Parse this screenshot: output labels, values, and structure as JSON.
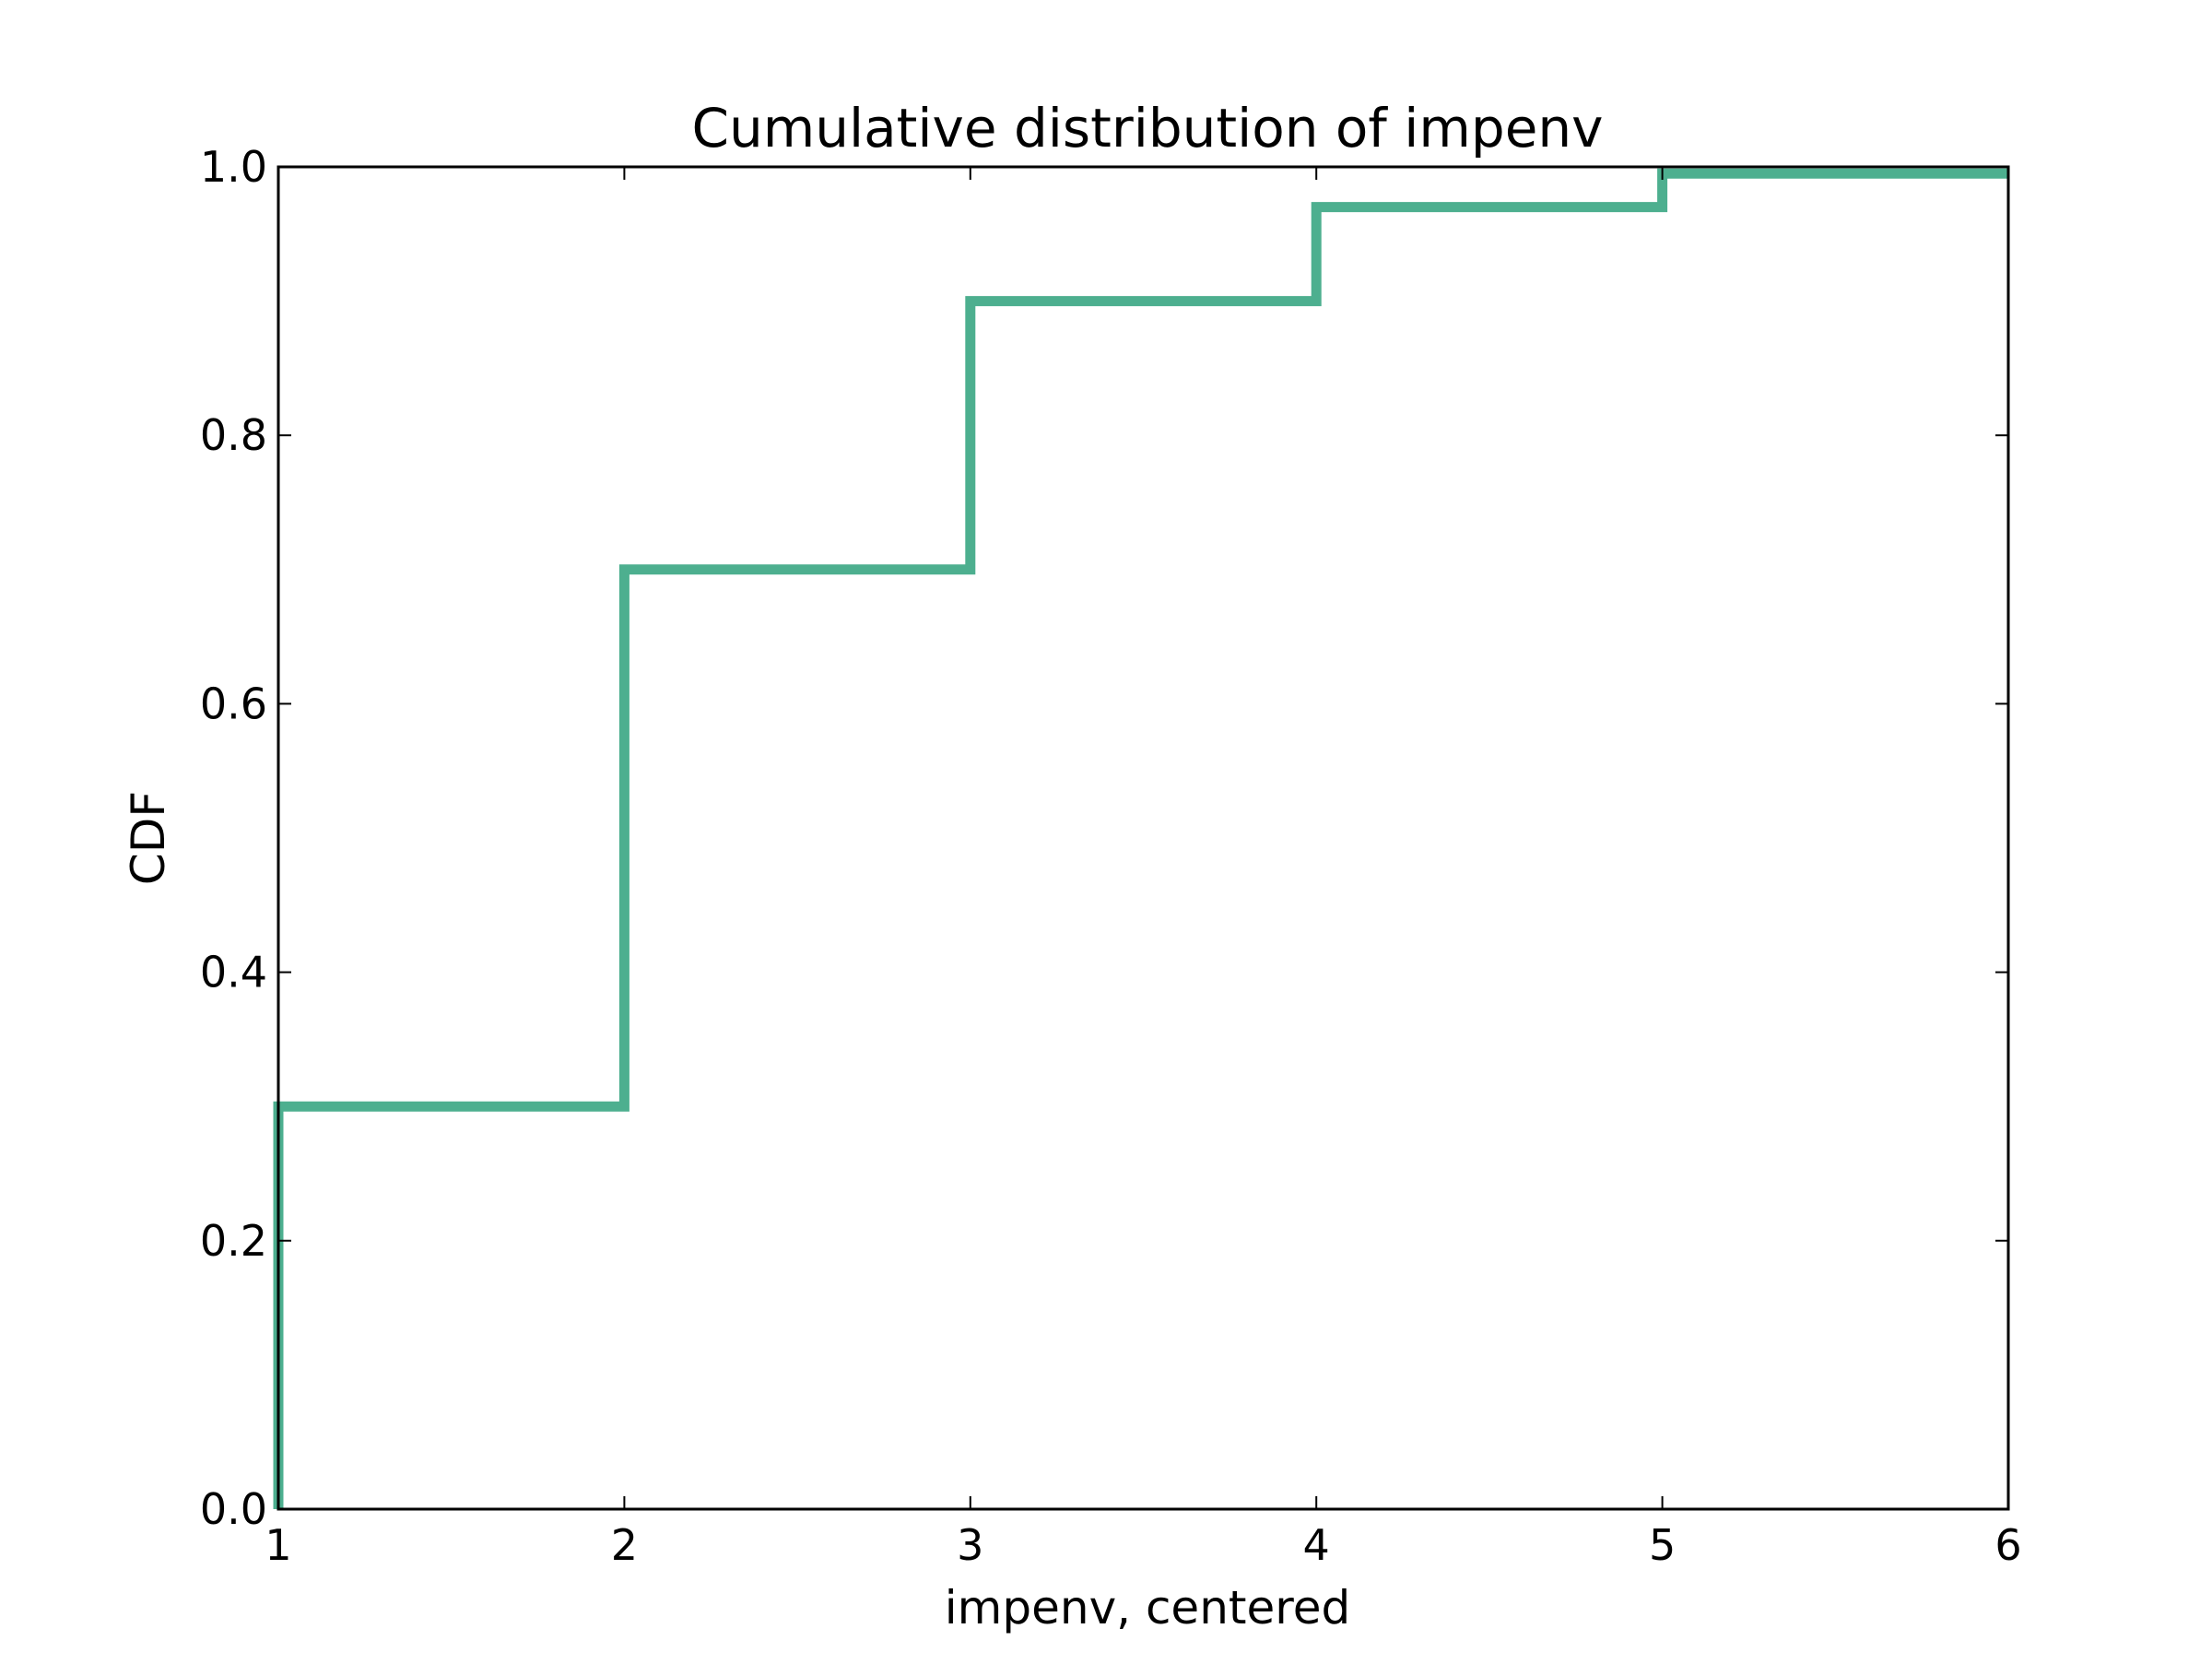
{
  "chart_data": {
    "type": "line",
    "title": "Cumulative distribution of impenv",
    "xlabel": "impenv, centered",
    "ylabel": "CDF",
    "xlim": [
      1,
      6
    ],
    "ylim": [
      0.0,
      1.0
    ],
    "x_ticks": [
      "1",
      "2",
      "3",
      "4",
      "5",
      "6"
    ],
    "y_ticks": [
      "0.0",
      "0.2",
      "0.4",
      "0.6",
      "0.8",
      "1.0"
    ],
    "grid": false,
    "legend": "none",
    "step": true,
    "series": [
      {
        "color": "#4daf8f",
        "x": [
          1,
          2,
          3,
          4,
          5,
          6
        ],
        "y": [
          0.3,
          0.7,
          0.9,
          0.97,
          0.995,
          0.995
        ]
      }
    ]
  }
}
